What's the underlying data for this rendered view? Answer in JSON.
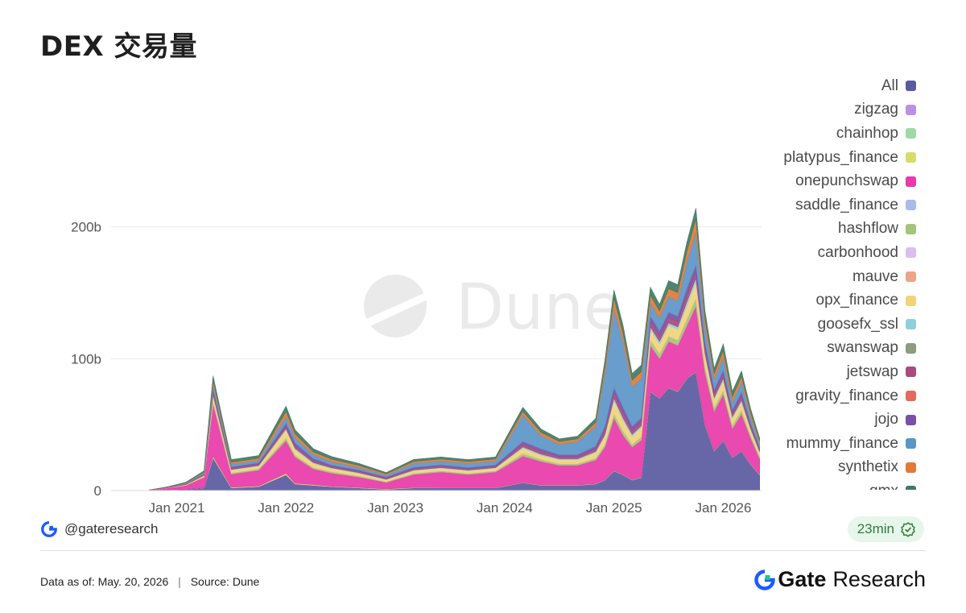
{
  "header": {
    "title": "DEX 交易量"
  },
  "chart_data": {
    "type": "area",
    "stacked": true,
    "title": "DEX 交易量",
    "xlabel": "",
    "ylabel": "",
    "x_ticks": [
      "Jan 2021",
      "Jan 2022",
      "Jan 2023",
      "Jan 2024",
      "Jan 2025",
      "Jan 2026"
    ],
    "y_ticks": [
      "0",
      "100b",
      "200b"
    ],
    "ylim": [
      0,
      300
    ],
    "grid": true,
    "legend_placement": "right",
    "x": [
      "2020-10",
      "2020-12",
      "2021-02",
      "2021-04",
      "2021-05",
      "2021-07",
      "2021-10",
      "2022-01",
      "2022-02",
      "2022-04",
      "2022-06",
      "2022-09",
      "2022-12",
      "2023-03",
      "2023-06",
      "2023-09",
      "2023-12",
      "2024-03",
      "2024-05",
      "2024-07",
      "2024-09",
      "2024-11",
      "2024-12",
      "2025-01",
      "2025-02",
      "2025-03",
      "2025-04",
      "2025-05",
      "2025-06",
      "2025-07",
      "2025-08",
      "2025-09",
      "2025-10",
      "2025-11",
      "2025-12",
      "2026-01",
      "2026-02",
      "2026-03",
      "2026-04",
      "2026-05"
    ],
    "series": [
      {
        "name": "All",
        "color": "#5a5aa0",
        "values": [
          0.1,
          0.5,
          1,
          2,
          25,
          2,
          3,
          12,
          5,
          4,
          3,
          2,
          1,
          2,
          2,
          2,
          2,
          6,
          4,
          4,
          4,
          5,
          8,
          15,
          12,
          8,
          10,
          75,
          70,
          78,
          75,
          85,
          90,
          50,
          30,
          38,
          25,
          30,
          20,
          12
        ]
      },
      {
        "name": "zigzag",
        "color": "#b990e6",
        "values": [
          0,
          0,
          0,
          0,
          0,
          0,
          0,
          0,
          0,
          0,
          0,
          0,
          0,
          0,
          0,
          0,
          0,
          0,
          0,
          0,
          0,
          0,
          0,
          0,
          0,
          0,
          0,
          0,
          0,
          0,
          0,
          0,
          0,
          0,
          0,
          0,
          0,
          0,
          0,
          0
        ]
      },
      {
        "name": "chainhop",
        "color": "#9fd9a8",
        "values": [
          0,
          0,
          0,
          0,
          0,
          0,
          0,
          0,
          0,
          0,
          0,
          0,
          0,
          0,
          0,
          0,
          0,
          0,
          0,
          0,
          0,
          0,
          0,
          0,
          0,
          0,
          0,
          0,
          0,
          0,
          0,
          0,
          0,
          0,
          0,
          0,
          0,
          0,
          0,
          0
        ]
      },
      {
        "name": "platypus_finance",
        "color": "#d8dc6a",
        "values": [
          0,
          0,
          0,
          0,
          1,
          0.5,
          0.5,
          1,
          0.5,
          0.5,
          0.3,
          0.3,
          0.3,
          0.3,
          0.2,
          0.2,
          0.2,
          0.2,
          0.2,
          0.2,
          0.2,
          0.2,
          0.2,
          0.2,
          0.2,
          0.2,
          0.2,
          0.2,
          0.2,
          0.2,
          0.2,
          0.2,
          0.2,
          0.2,
          0.2,
          0.2,
          0.2,
          0.2,
          0.2,
          0.2
        ]
      },
      {
        "name": "onepunchswap",
        "color": "#e83aa8",
        "values": [
          0.3,
          1.5,
          3,
          8,
          40,
          10,
          12,
          25,
          20,
          12,
          10,
          8,
          5,
          10,
          12,
          10,
          12,
          20,
          18,
          15,
          15,
          18,
          25,
          40,
          30,
          25,
          28,
          35,
          30,
          35,
          35,
          40,
          50,
          40,
          30,
          35,
          22,
          28,
          20,
          12
        ]
      },
      {
        "name": "saddle_finance",
        "color": "#a8bbea",
        "values": [
          0,
          0,
          0,
          0,
          0,
          0,
          0,
          0,
          0,
          0,
          0,
          0,
          0,
          0,
          0,
          0,
          0,
          0,
          0,
          0,
          0,
          0,
          0,
          0,
          0,
          0,
          0,
          0,
          0,
          0,
          0,
          0,
          0,
          0,
          0,
          0,
          0,
          0,
          0,
          0
        ]
      },
      {
        "name": "hashflow",
        "color": "#a3c47a",
        "values": [
          0,
          0,
          0,
          0.5,
          2,
          1,
          1,
          2,
          1.5,
          1,
          1,
          0.8,
          0.5,
          0.8,
          0.8,
          0.8,
          0.8,
          2,
          1.5,
          1.2,
          1.2,
          1.5,
          2,
          3,
          3,
          2,
          2.5,
          4,
          4,
          4,
          4,
          5,
          6,
          4,
          3,
          3,
          2.5,
          3,
          2,
          1.5
        ]
      },
      {
        "name": "carbonhood",
        "color": "#dcbdf0",
        "values": [
          0,
          0,
          0,
          0,
          0,
          0,
          0,
          0,
          0,
          0,
          0,
          0,
          0,
          0,
          0,
          0,
          0,
          0,
          0,
          0,
          0,
          0,
          0,
          0,
          0,
          0,
          0,
          0,
          0,
          0,
          0,
          0,
          0,
          0,
          0,
          0,
          0,
          0,
          0,
          0
        ]
      },
      {
        "name": "mauve",
        "color": "#eba587",
        "values": [
          0,
          0,
          0,
          0,
          0,
          0,
          0,
          0,
          0,
          0,
          0,
          0,
          0,
          0,
          0,
          0,
          0,
          0,
          0,
          0,
          0,
          0,
          0,
          0,
          0,
          0,
          0,
          0,
          0,
          0,
          0,
          0,
          0,
          0,
          0,
          0,
          0,
          0,
          0,
          0
        ]
      },
      {
        "name": "opx_finance",
        "color": "#f2d37a",
        "values": [
          0,
          0.2,
          0.5,
          1,
          4,
          2,
          2,
          6,
          4,
          3,
          2.5,
          2,
          1.5,
          2,
          2,
          2,
          2,
          4,
          3,
          3,
          3,
          4,
          6,
          10,
          8,
          6,
          7,
          8,
          7,
          8,
          8,
          10,
          12,
          8,
          6,
          7,
          5,
          6,
          4,
          3
        ]
      },
      {
        "name": "goosefx_ssl",
        "color": "#8fd0dc",
        "values": [
          0,
          0,
          0,
          0,
          1,
          0.5,
          0.5,
          1,
          1,
          0.8,
          0.5,
          0.5,
          0.3,
          0.5,
          0.5,
          0.5,
          0.5,
          1,
          1,
          0.8,
          0.8,
          1,
          1.5,
          2,
          2,
          1.5,
          1.5,
          2,
          2,
          2,
          2,
          3,
          3,
          2,
          1.5,
          2,
          1.5,
          1.5,
          1,
          1
        ]
      },
      {
        "name": "swanswap",
        "color": "#8f9a7e",
        "values": [
          0,
          0,
          0,
          0,
          0,
          0,
          0,
          0,
          0,
          0,
          0,
          0,
          0,
          0,
          0,
          0,
          0,
          0,
          0,
          0,
          0,
          0,
          0,
          0,
          0,
          0,
          0,
          0,
          0,
          0,
          0,
          0,
          0,
          0,
          0,
          0,
          0,
          0,
          0,
          0
        ]
      },
      {
        "name": "jetswap",
        "color": "#a84a7e",
        "values": [
          0,
          0.1,
          0.3,
          0.5,
          2,
          1,
          1,
          2,
          2,
          1.5,
          1,
          1,
          0.8,
          1,
          1,
          1,
          1,
          2,
          2,
          1.5,
          1.5,
          2,
          3,
          4,
          4,
          3,
          3,
          4,
          4,
          4,
          4,
          5,
          5,
          4,
          3,
          3,
          2.5,
          3,
          2,
          1.5
        ]
      },
      {
        "name": "gravity_finance",
        "color": "#e46a5c",
        "values": [
          0,
          0,
          0,
          0,
          0,
          0,
          0,
          0,
          0,
          0,
          0,
          0,
          0,
          0,
          0,
          0,
          0,
          0,
          0,
          0,
          0,
          0,
          0,
          0,
          0,
          0,
          0,
          0,
          0,
          0,
          0,
          0,
          0,
          0,
          0,
          0,
          0,
          0,
          0,
          0
        ]
      },
      {
        "name": "jojo",
        "color": "#7a50a4",
        "values": [
          0,
          0.1,
          0.2,
          0.5,
          2,
          1,
          1,
          2,
          2,
          1.5,
          1,
          1,
          0.8,
          1,
          1,
          1,
          1,
          2,
          2,
          1.5,
          1.5,
          2,
          3,
          4,
          4,
          3,
          3,
          4,
          4,
          4,
          4,
          5,
          5,
          4,
          3,
          3,
          2.5,
          3,
          2,
          1.5
        ]
      },
      {
        "name": "mummy_finance",
        "color": "#5b95c8",
        "values": [
          0,
          0.2,
          0.5,
          1,
          4,
          2,
          2,
          5,
          4,
          3,
          2.5,
          2,
          1.5,
          3,
          3,
          3,
          3,
          20,
          10,
          8,
          10,
          15,
          40,
          60,
          50,
          30,
          30,
          10,
          10,
          12,
          12,
          20,
          25,
          12,
          8,
          10,
          6,
          8,
          5,
          3
        ]
      },
      {
        "name": "synthetix",
        "color": "#e07a36",
        "values": [
          0,
          0.1,
          0.3,
          0.5,
          3,
          1.5,
          1.5,
          4,
          3,
          2,
          2,
          1.5,
          1,
          1.5,
          1.5,
          1.5,
          1.5,
          3,
          2.5,
          2,
          2,
          3,
          5,
          8,
          6,
          5,
          5,
          6,
          5,
          6,
          6,
          8,
          10,
          6,
          4,
          5,
          4,
          4,
          3,
          2
        ]
      },
      {
        "name": "gmx",
        "color": "#3f7a64",
        "values": [
          0,
          0.2,
          0.5,
          1,
          3,
          2,
          2,
          4,
          3,
          2.5,
          2,
          1.5,
          1,
          1.5,
          1.5,
          1.5,
          1.5,
          3,
          2.5,
          2,
          2,
          3,
          5,
          6,
          6,
          5,
          5,
          6,
          5,
          6,
          6,
          7,
          8,
          6,
          4,
          5,
          4,
          4,
          3,
          2
        ]
      }
    ]
  },
  "watermark": "Dune",
  "handle": {
    "text": "@gateresearch"
  },
  "badge": {
    "text": "23min"
  },
  "footer": {
    "data_as_of_label": "Data as of:",
    "data_as_of_value": "May. 20, 2026",
    "separator": "|",
    "source_label": "Source:",
    "source_value": "Dune"
  },
  "brand": {
    "word1": "Gate",
    "word2": "Research"
  }
}
